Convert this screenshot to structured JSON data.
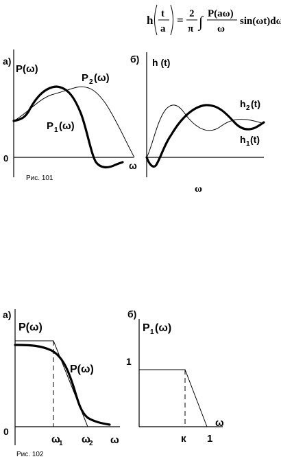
{
  "formula": {
    "lhs": "h",
    "frac1_num": "t",
    "frac1_den": "a",
    "eq": "=",
    "frac2_num": "2",
    "frac2_den": "π",
    "integral": "∫",
    "frac3_num": "P(aω)",
    "frac3_den": "ω",
    "tail": "sin(ωt)dω"
  },
  "fig101": {
    "caption": "Рис. 101",
    "left": {
      "panel_label": "а)",
      "y_label": "P(ω)",
      "zero_label": "0",
      "x_label": "ω",
      "curve1_label_main": "P",
      "curve1_label_sub": "1",
      "curve1_label_tail": "(ω)",
      "curve2_label_main": "P",
      "curve2_label_sub": "2",
      "curve2_label_tail": "(ω)"
    },
    "right": {
      "panel_label": "б)",
      "y_label": "h (t)",
      "x_label": "ω",
      "curve1_label_main": "h",
      "curve1_label_sub": "1",
      "curve1_label_tail": "(t)",
      "curve2_label_main": "h",
      "curve2_label_sub": "2",
      "curve2_label_tail": "(t)"
    }
  },
  "fig102": {
    "caption": "Рис. 102",
    "left": {
      "panel_label": "а)",
      "y_label": "P(ω)",
      "curve_label": "P(ω)",
      "zero_label": "0",
      "x_label": "ω",
      "tick1_main": "ω",
      "tick1_sub": "1",
      "tick2_main": "ω",
      "tick2_sub": "2"
    },
    "right": {
      "panel_label": "б)",
      "y_label_main": "P",
      "y_label_sub": "1",
      "y_label_tail": "(ω)",
      "one_y_label": "1",
      "x_label": "ω",
      "k_label": "к",
      "one_x_label": "1"
    }
  }
}
